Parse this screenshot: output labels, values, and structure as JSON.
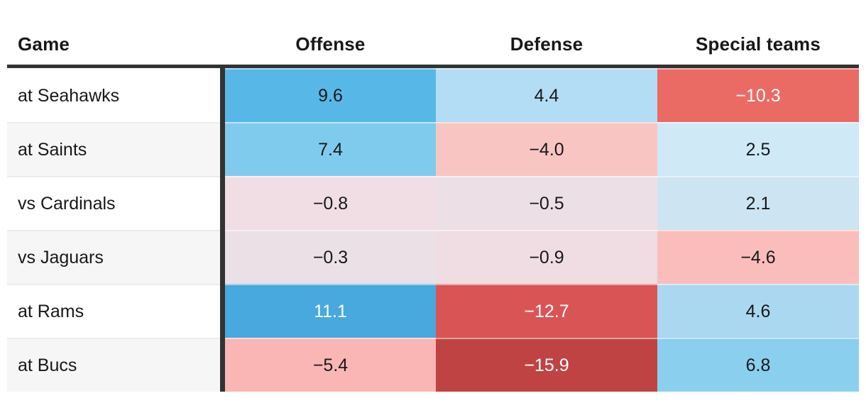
{
  "table": {
    "headers": [
      {
        "key": "game",
        "label": "Game"
      },
      {
        "key": "offense",
        "label": "Offense"
      },
      {
        "key": "defense",
        "label": "Defense"
      },
      {
        "key": "special",
        "label": "Special teams"
      }
    ],
    "rows": [
      {
        "game": "at Seahawks",
        "cells": [
          {
            "col": "offense",
            "value": "9.6",
            "bg": "#57B8E8",
            "fg": "#17181A"
          },
          {
            "col": "defense",
            "value": "4.4",
            "bg": "#B2DDF4",
            "fg": "#17181A"
          },
          {
            "col": "special",
            "value": "−10.3",
            "bg": "#EA6B64",
            "fg": "#FFFFFF"
          }
        ]
      },
      {
        "game": "at Saints",
        "cells": [
          {
            "col": "offense",
            "value": "7.4",
            "bg": "#7FCBEE",
            "fg": "#17181A"
          },
          {
            "col": "defense",
            "value": "−4.0",
            "bg": "#F9C5C3",
            "fg": "#17181A"
          },
          {
            "col": "special",
            "value": "2.5",
            "bg": "#CFE9F7",
            "fg": "#17181A"
          }
        ]
      },
      {
        "game": "vs Cardinals",
        "cells": [
          {
            "col": "offense",
            "value": "−0.8",
            "bg": "#F0DEE4",
            "fg": "#17181A"
          },
          {
            "col": "defense",
            "value": "−0.5",
            "bg": "#EDDFE6",
            "fg": "#17181A"
          },
          {
            "col": "special",
            "value": "2.1",
            "bg": "#CDE5F2",
            "fg": "#17181A"
          }
        ]
      },
      {
        "game": "vs Jaguars",
        "cells": [
          {
            "col": "offense",
            "value": "−0.3",
            "bg": "#ECE0E7",
            "fg": "#17181A"
          },
          {
            "col": "defense",
            "value": "−0.9",
            "bg": "#F0DDE3",
            "fg": "#17181A"
          },
          {
            "col": "special",
            "value": "−4.6",
            "bg": "#FBBDBC",
            "fg": "#17181A"
          }
        ]
      },
      {
        "game": "at Rams",
        "cells": [
          {
            "col": "offense",
            "value": "11.1",
            "bg": "#47A9DD",
            "fg": "#FFFFFF"
          },
          {
            "col": "defense",
            "value": "−12.7",
            "bg": "#D95555",
            "fg": "#FFFFFF"
          },
          {
            "col": "special",
            "value": "4.6",
            "bg": "#AAD8F1",
            "fg": "#17181A"
          }
        ]
      },
      {
        "game": "at Bucs",
        "cells": [
          {
            "col": "offense",
            "value": "−5.4",
            "bg": "#F9B6B5",
            "fg": "#17181A"
          },
          {
            "col": "defense",
            "value": "−15.9",
            "bg": "#C04343",
            "fg": "#FFFFFF"
          },
          {
            "col": "special",
            "value": "6.8",
            "bg": "#8BCFEF",
            "fg": "#17181A"
          }
        ]
      }
    ]
  },
  "style": {
    "frame_color": "#333333",
    "alt_row_bg": "#F6F6F6",
    "row_separator": "#ECECEC",
    "text_dark": "#17181A",
    "text_light": "#FFFFFF",
    "positive_color_max": "#47A9DD",
    "negative_color_max": "#C04343"
  },
  "chart_data": {
    "type": "heatmap",
    "title": "",
    "columns": [
      "Offense",
      "Defense",
      "Special teams"
    ],
    "rows": [
      "at Seahawks",
      "at Saints",
      "vs Cardinals",
      "vs Jaguars",
      "at Rams",
      "at Bucs"
    ],
    "values": [
      [
        9.6,
        4.4,
        -10.3
      ],
      [
        7.4,
        -4.0,
        2.5
      ],
      [
        -0.8,
        -0.5,
        2.1
      ],
      [
        -0.3,
        -0.9,
        -4.6
      ],
      [
        11.1,
        -12.7,
        4.6
      ],
      [
        -5.4,
        -15.9,
        6.8
      ]
    ],
    "legend_position": "none",
    "color_scale": {
      "positive": "blue",
      "negative": "red",
      "near_zero": "pale pink/lavender"
    }
  }
}
